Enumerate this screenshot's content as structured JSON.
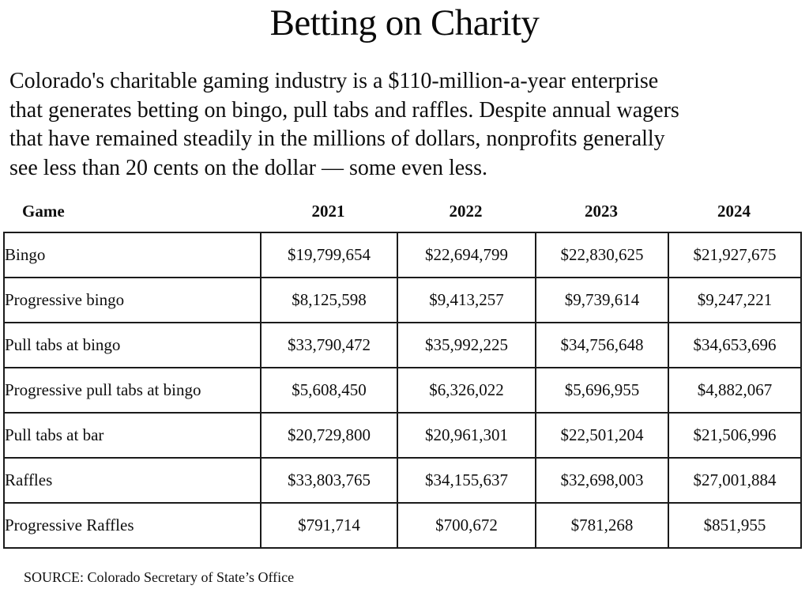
{
  "title": "Betting on Charity",
  "intro": {
    "lines": [
      "Colorado's charitable gaming industry is a $110-million-a-year enterprise",
      "that generates betting on bingo, pull tabs and raffles. Despite annual wagers",
      "that have remained steadily in the millions of dollars, nonprofits generally",
      "see less than 20 cents on the dollar — some even less."
    ],
    "full_text": "Colorado's charitable gaming industry is a $110-million-a-year enterprise that generates betting on bingo, pull tabs and raffles. Despite annual wagers that have remained steadily in the millions of dollars, nonprofits generally see less than 20 cents on the dollar — some even less."
  },
  "table": {
    "columns": [
      "Game",
      "2021",
      "2022",
      "2023",
      "2024"
    ],
    "rows": [
      {
        "game": "Bingo",
        "values": [
          "$19,799,654",
          "$22,694,799",
          "$22,830,625",
          "$21,927,675"
        ]
      },
      {
        "game": "Progressive bingo",
        "values": [
          "$8,125,598",
          "$9,413,257",
          "$9,739,614",
          "$9,247,221"
        ]
      },
      {
        "game": "Pull tabs at bingo",
        "values": [
          "$33,790,472",
          "$35,992,225",
          "$34,756,648",
          "$34,653,696"
        ]
      },
      {
        "game": "Progressive pull tabs at bingo",
        "values": [
          "$5,608,450",
          "$6,326,022",
          "$5,696,955",
          "$4,882,067"
        ]
      },
      {
        "game": "Pull tabs at bar",
        "values": [
          "$20,729,800",
          "$20,961,301",
          "$22,501,204",
          "$21,506,996"
        ]
      },
      {
        "game": "Raffles",
        "values": [
          "$33,803,765",
          "$34,155,637",
          "$32,698,003",
          "$27,001,884"
        ]
      },
      {
        "game": "Progressive Raffles",
        "values": [
          "$791,714",
          "$700,672",
          "$781,268",
          "$851,955"
        ]
      }
    ]
  },
  "source": "SOURCE: Colorado Secretary of State’s Office",
  "colors": {
    "background": "#ffffff",
    "text": "#0e0e0e",
    "border": "#1b1b1b"
  },
  "chart_data": {
    "type": "table",
    "title": "Betting on Charity",
    "categories": [
      "2021",
      "2022",
      "2023",
      "2024"
    ],
    "series": [
      {
        "name": "Bingo",
        "values": [
          19799654,
          22694799,
          22830625,
          21927675
        ]
      },
      {
        "name": "Progressive bingo",
        "values": [
          8125598,
          9413257,
          9739614,
          9247221
        ]
      },
      {
        "name": "Pull tabs at bingo",
        "values": [
          33790472,
          35992225,
          34756648,
          34653696
        ]
      },
      {
        "name": "Progressive pull tabs at bingo",
        "values": [
          5608450,
          6326022,
          5696955,
          4882067
        ]
      },
      {
        "name": "Pull tabs at bar",
        "values": [
          20729800,
          20961301,
          22501204,
          21506996
        ]
      },
      {
        "name": "Raffles",
        "values": [
          33803765,
          34155637,
          32698003,
          27001884
        ]
      },
      {
        "name": "Progressive Raffles",
        "values": [
          791714,
          700672,
          781268,
          851955
        ]
      }
    ],
    "units": "USD annual wagers",
    "notes": "SOURCE: Colorado Secretary of State’s Office"
  }
}
